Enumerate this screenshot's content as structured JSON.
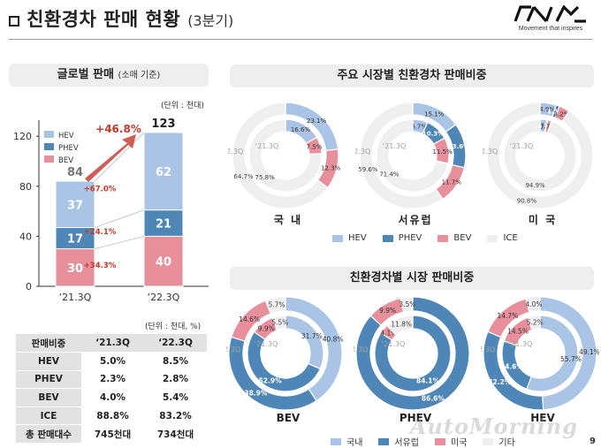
{
  "header": {
    "title": "친환경차 판매 현황",
    "subtitle": "(3분기)",
    "logo_tagline": "Movement that inspires"
  },
  "left": {
    "section_title": "글로벌 판매",
    "section_title_note": "(소매 기준)",
    "unit": "(단위 : 천대)",
    "table_unit": "(단위 : 천대, %)",
    "table": {
      "headers": [
        "판매비중",
        "‘21.3Q",
        "‘22.3Q"
      ],
      "rows": [
        {
          "label": "HEV",
          "v1": "5.0%",
          "v2": "8.5%"
        },
        {
          "label": "PHEV",
          "v1": "2.3%",
          "v2": "2.8%"
        },
        {
          "label": "BEV",
          "v1": "4.0%",
          "v2": "5.4%"
        },
        {
          "label": "ICE",
          "v1": "88.8%",
          "v2": "83.2%"
        },
        {
          "label": "총 판매대수",
          "v1": "745천대",
          "v2": "734천대"
        }
      ]
    }
  },
  "right_top": {
    "section_title": "주요 시장별 친환경차 판매비중",
    "region_labels": [
      "국 내",
      "서유럽",
      "미 국"
    ]
  },
  "right_bottom": {
    "section_title": "친환경차별 시장 판매비중",
    "type_labels": [
      "BEV",
      "PHEV",
      "HEV"
    ]
  },
  "legend_top": [
    "HEV",
    "PHEV",
    "BEV",
    "ICE"
  ],
  "legend_bottom": [
    "국내",
    "서유럽",
    "미국",
    "기타"
  ],
  "colors": {
    "hev": "#a9c4e4",
    "phev": "#4f86b8",
    "bev": "#e88f9c",
    "ice": "#efefef",
    "domestic": "#a9c4e4",
    "weurope": "#4f86b8",
    "us": "#e88f9c",
    "other": "#efefef",
    "growth": "#c0392b"
  },
  "footer": {
    "watermark": "AutoMorning",
    "page": "9"
  },
  "chart_data": [
    {
      "type": "bar",
      "stacked": true,
      "categories": [
        "‘21.3Q",
        "‘22.3Q"
      ],
      "series": [
        {
          "name": "BEV",
          "values": [
            30,
            40
          ],
          "growth": "+34.3%"
        },
        {
          "name": "PHEV",
          "values": [
            17,
            21
          ],
          "growth": "+24.1%"
        },
        {
          "name": "HEV",
          "values": [
            37,
            62
          ],
          "growth": "+67.0%"
        }
      ],
      "totals": [
        84,
        123
      ],
      "total_growth": "+46.8%",
      "ylim": [
        0,
        130
      ],
      "yticks": [
        0,
        40,
        80,
        120
      ],
      "legend": [
        "HEV",
        "PHEV",
        "BEV"
      ]
    },
    {
      "type": "pie",
      "title": "국 내",
      "rings": [
        {
          "period": "‘22.3Q",
          "labels": [
            "HEV",
            "PHEV",
            "BEV",
            "ICE"
          ],
          "values": [
            23.1,
            0,
            12.3,
            64.7
          ]
        },
        {
          "period": "‘21.3Q",
          "labels": [
            "HEV",
            "PHEV",
            "BEV",
            "ICE"
          ],
          "values": [
            16.6,
            0,
            7.5,
            75.8
          ]
        }
      ]
    },
    {
      "type": "pie",
      "title": "서유럽",
      "rings": [
        {
          "period": "‘22.3Q",
          "labels": [
            "HEV",
            "PHEV",
            "BEV",
            "ICE"
          ],
          "values": [
            15.1,
            13.6,
            11.7,
            59.6
          ]
        },
        {
          "period": "‘21.3Q",
          "labels": [
            "HEV",
            "PHEV",
            "BEV",
            "ICE"
          ],
          "values": [
            6.7,
            10.3,
            11.5,
            71.4
          ]
        }
      ]
    },
    {
      "type": "pie",
      "title": "미 국",
      "rings": [
        {
          "period": "‘22.3Q",
          "labels": [
            "HEV",
            "PHEV",
            "BEV",
            "ICE"
          ],
          "values": [
            4.9,
            1.1,
            3.2,
            90.8
          ]
        },
        {
          "period": "‘21.3Q",
          "labels": [
            "HEV",
            "PHEV",
            "BEV",
            "ICE"
          ],
          "values": [
            3.1,
            0.3,
            1.7,
            94.9
          ]
        }
      ]
    },
    {
      "type": "pie",
      "title": "BEV",
      "rings": [
        {
          "period": "‘22.3Q",
          "labels": [
            "국내",
            "서유럽",
            "미국",
            "기타"
          ],
          "values": [
            40.8,
            38.9,
            14.6,
            5.7
          ]
        },
        {
          "period": "‘21.3Q",
          "labels": [
            "국내",
            "서유럽",
            "미국",
            "기타"
          ],
          "values": [
            31.7,
            52.9,
            9.9,
            5.5
          ]
        }
      ]
    },
    {
      "type": "pie",
      "title": "PHEV",
      "rings": [
        {
          "period": "‘22.3Q",
          "labels": [
            "국내",
            "서유럽",
            "미국",
            "기타"
          ],
          "values": [
            0,
            86.6,
            9.9,
            3.5
          ]
        },
        {
          "period": "‘21.3Q",
          "labels": [
            "국내",
            "서유럽",
            "미국",
            "기타"
          ],
          "values": [
            0,
            84.1,
            4.1,
            11.8
          ]
        }
      ]
    },
    {
      "type": "pie",
      "title": "HEV",
      "rings": [
        {
          "period": "‘22.3Q",
          "labels": [
            "국내",
            "서유럽",
            "미국",
            "기타"
          ],
          "values": [
            49.1,
            32.2,
            14.7,
            4.0
          ]
        },
        {
          "period": "‘21.3Q",
          "labels": [
            "국내",
            "서유럽",
            "미국",
            "기타"
          ],
          "values": [
            55.7,
            24.6,
            14.5,
            5.2
          ]
        }
      ]
    }
  ]
}
